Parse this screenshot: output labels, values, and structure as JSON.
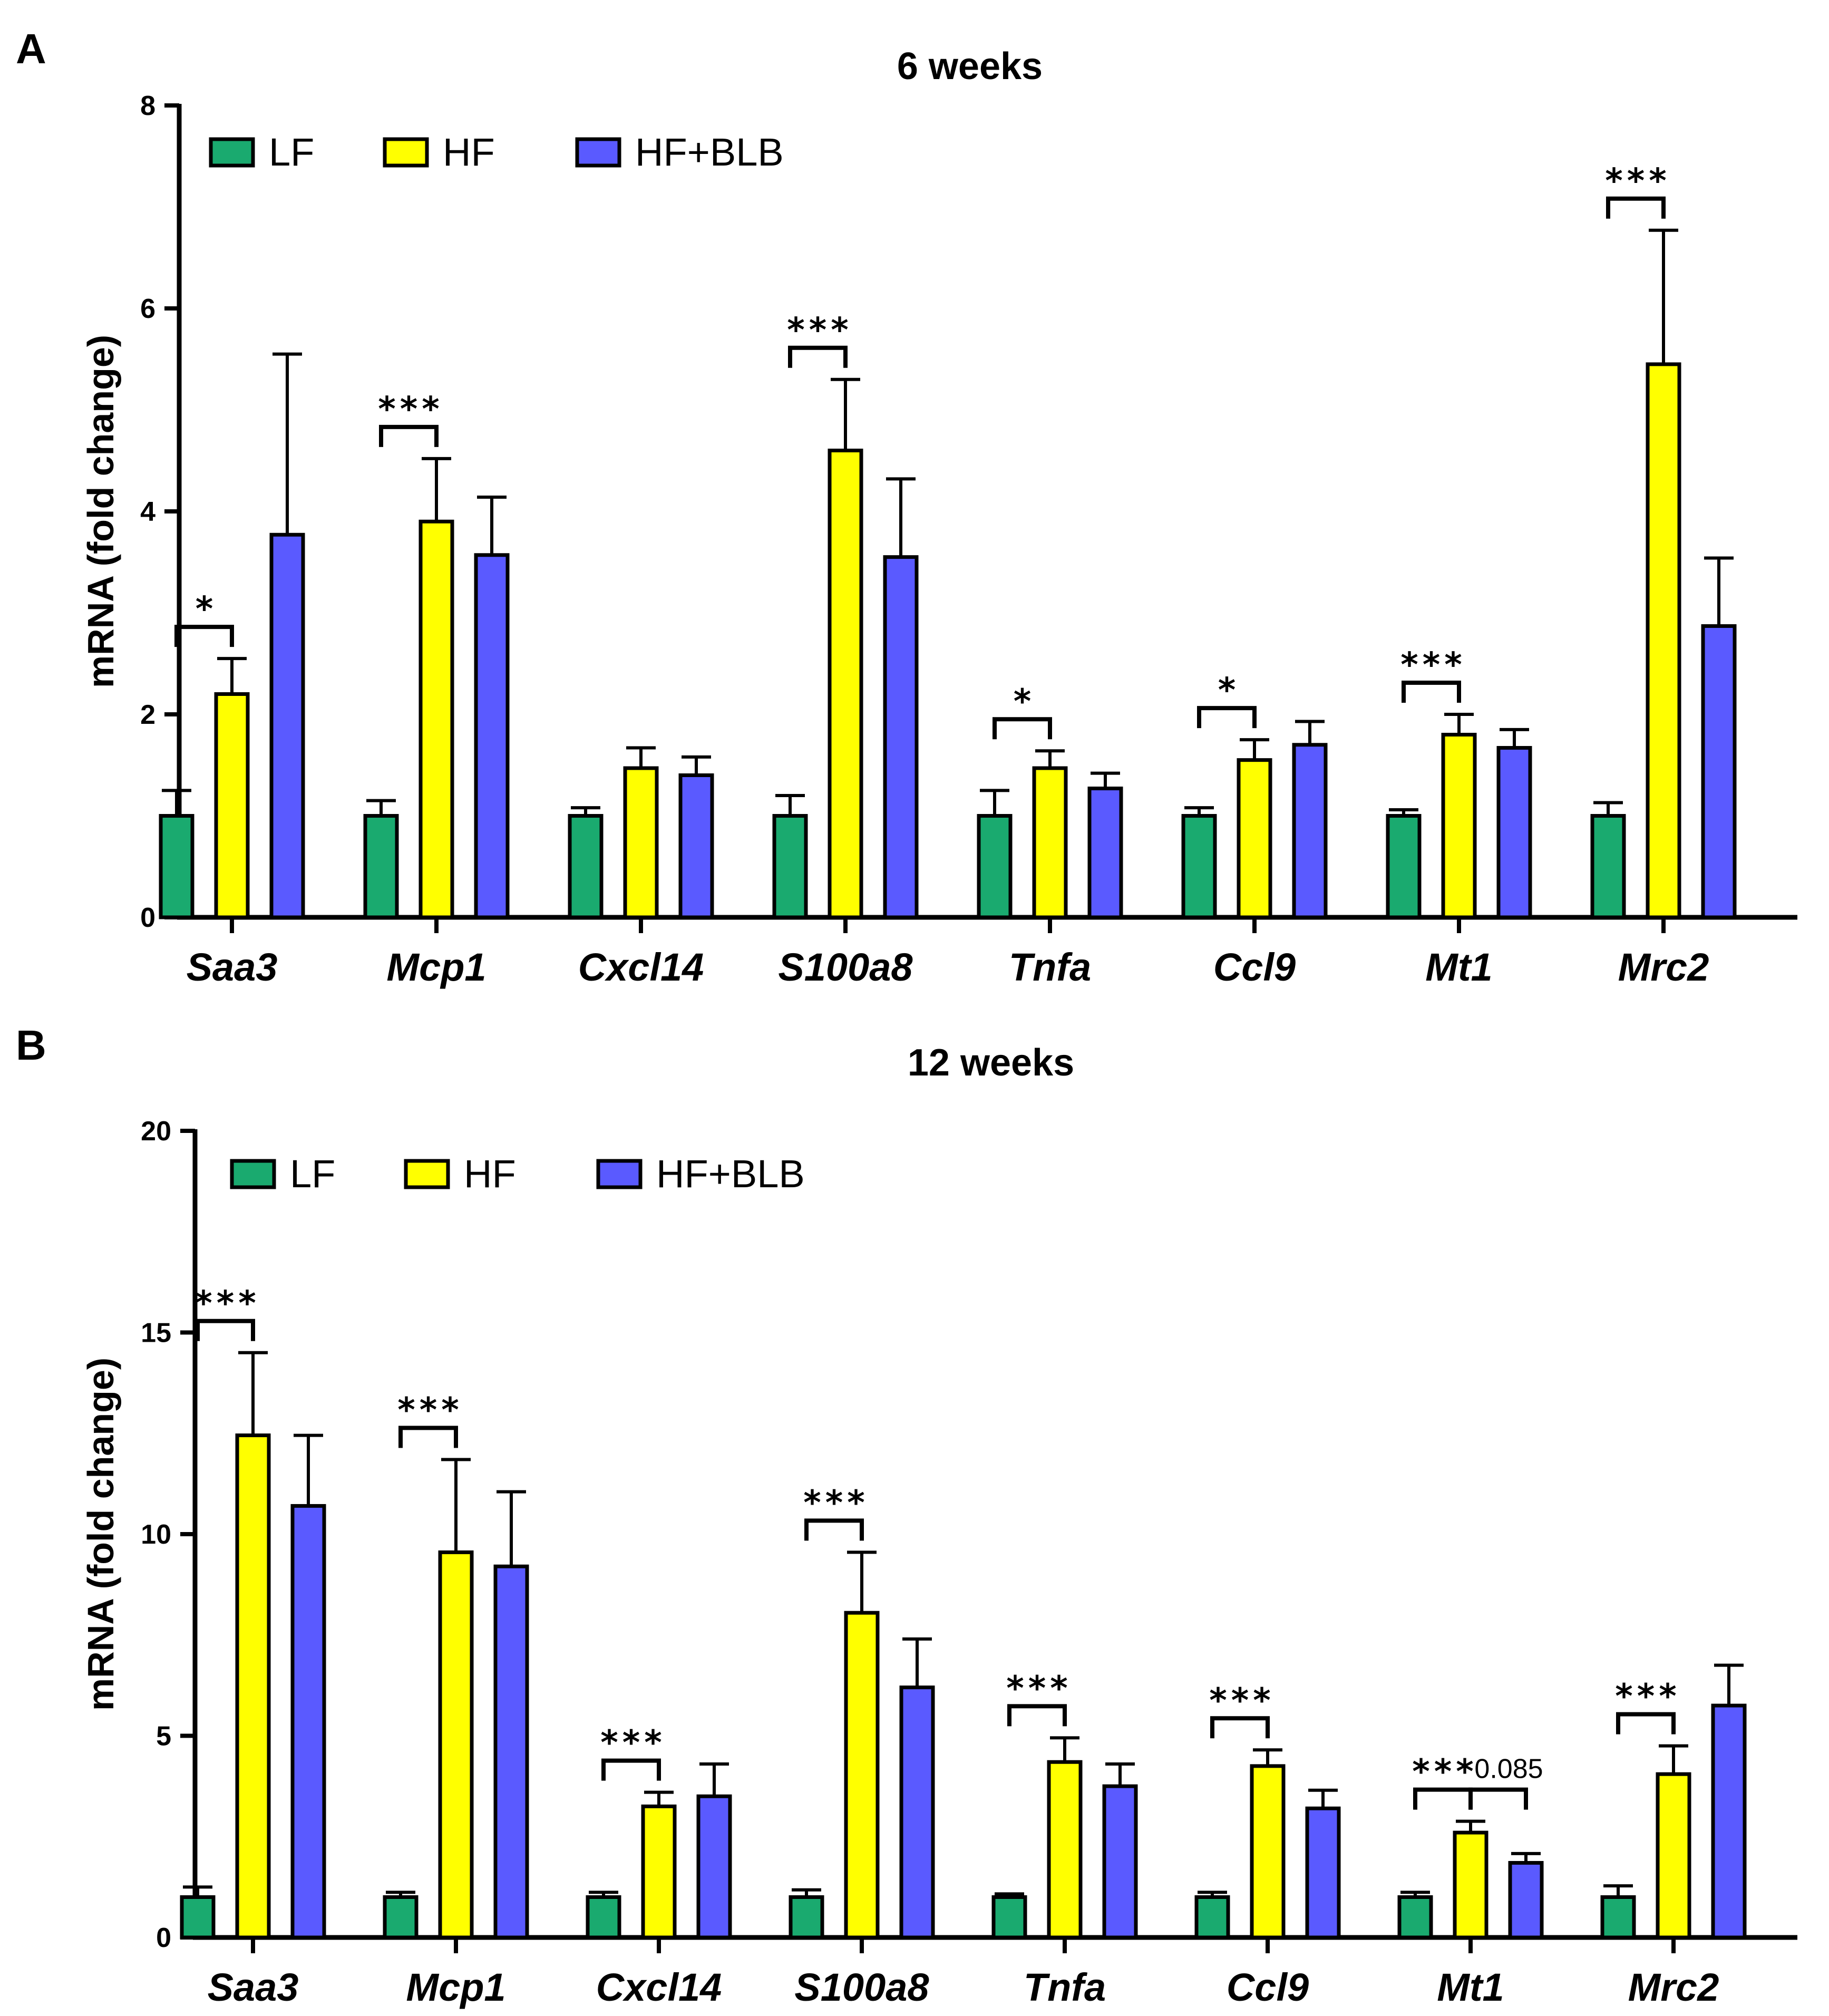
{
  "colors": {
    "LF": "#1aaa6f",
    "HF": "#ffff00",
    "HF+BLB": "#5a5aff",
    "ink": "#000000"
  },
  "chart_data": [
    {
      "type": "bar",
      "panel": "A",
      "title": "6 weeks",
      "ylabel": "mRNA (fold change)",
      "xlabel": "",
      "ylim": [
        0,
        8
      ],
      "yticks": [
        0,
        2,
        4,
        6,
        8
      ],
      "categories": [
        "Saa3",
        "Mcp1",
        "Cxcl14",
        "S100a8",
        "Tnfa",
        "Ccl9",
        "Mt1",
        "Mrc2"
      ],
      "legend": [
        "LF",
        "HF",
        "HF+BLB"
      ],
      "legend_position": "top-left",
      "series": [
        {
          "name": "LF",
          "values": [
            1,
            1,
            1,
            1,
            1,
            1,
            1,
            1
          ],
          "errors": [
            0.25,
            0.15,
            0.08,
            0.2,
            0.25,
            0.08,
            0.06,
            0.13
          ]
        },
        {
          "name": "HF",
          "values": [
            2.2,
            3.9,
            1.47,
            4.6,
            1.47,
            1.55,
            1.8,
            5.45
          ],
          "errors": [
            0.35,
            0.62,
            0.2,
            0.7,
            0.17,
            0.2,
            0.2,
            1.32
          ]
        },
        {
          "name": "HF+BLB",
          "values": [
            3.77,
            3.57,
            1.4,
            3.55,
            1.27,
            1.7,
            1.67,
            2.87
          ],
          "errors": [
            1.78,
            0.57,
            0.18,
            0.77,
            0.15,
            0.23,
            0.18,
            0.67
          ]
        }
      ],
      "significance": [
        {
          "category": "Saa3",
          "from": "LF",
          "to": "HF",
          "label": "*"
        },
        {
          "category": "Mcp1",
          "from": "LF",
          "to": "HF",
          "label": "***"
        },
        {
          "category": "S100a8",
          "from": "LF",
          "to": "HF",
          "label": "***"
        },
        {
          "category": "Tnfa",
          "from": "LF",
          "to": "HF",
          "label": "*"
        },
        {
          "category": "Ccl9",
          "from": "LF",
          "to": "HF",
          "label": "*"
        },
        {
          "category": "Mt1",
          "from": "LF",
          "to": "HF",
          "label": "***"
        },
        {
          "category": "Mrc2",
          "from": "LF",
          "to": "HF",
          "label": "***"
        }
      ]
    },
    {
      "type": "bar",
      "panel": "B",
      "title": "12 weeks",
      "ylabel": "mRNA (fold change)",
      "xlabel": "",
      "ylim": [
        0,
        20
      ],
      "yticks": [
        0,
        5,
        10,
        15,
        20
      ],
      "categories": [
        "Saa3",
        "Mcp1",
        "Cxcl14",
        "S100a8",
        "Tnfa",
        "Ccl9",
        "Mt1",
        "Mrc2"
      ],
      "legend": [
        "LF",
        "HF",
        "HF+BLB"
      ],
      "legend_position": "top-left",
      "series": [
        {
          "name": "LF",
          "values": [
            1,
            1,
            1,
            1,
            1,
            1,
            1,
            1
          ],
          "errors": [
            0.25,
            0.12,
            0.12,
            0.18,
            0.08,
            0.12,
            0.12,
            0.28
          ]
        },
        {
          "name": "HF",
          "values": [
            12.45,
            9.55,
            3.25,
            8.05,
            4.35,
            4.25,
            2.6,
            4.05
          ],
          "errors": [
            2.05,
            2.3,
            0.35,
            1.5,
            0.6,
            0.4,
            0.28,
            0.7
          ]
        },
        {
          "name": "HF+BLB",
          "values": [
            10.7,
            9.2,
            3.5,
            6.2,
            3.75,
            3.2,
            1.85,
            5.75
          ],
          "errors": [
            1.75,
            1.85,
            0.8,
            1.2,
            0.55,
            0.45,
            0.23,
            1.0
          ]
        }
      ],
      "significance": [
        {
          "category": "Saa3",
          "from": "LF",
          "to": "HF",
          "label": "***"
        },
        {
          "category": "Mcp1",
          "from": "LF",
          "to": "HF",
          "label": "***"
        },
        {
          "category": "Cxcl14",
          "from": "LF",
          "to": "HF",
          "label": "***"
        },
        {
          "category": "S100a8",
          "from": "LF",
          "to": "HF",
          "label": "***"
        },
        {
          "category": "Tnfa",
          "from": "LF",
          "to": "HF",
          "label": "***"
        },
        {
          "category": "Ccl9",
          "from": "LF",
          "to": "HF",
          "label": "***"
        },
        {
          "category": "Mt1",
          "from": "LF",
          "to": "HF",
          "label": "***"
        },
        {
          "category": "Mt1",
          "from": "HF",
          "to": "HF+BLB",
          "label": "0.085"
        },
        {
          "category": "Mrc2",
          "from": "LF",
          "to": "HF",
          "label": "***"
        }
      ]
    }
  ]
}
